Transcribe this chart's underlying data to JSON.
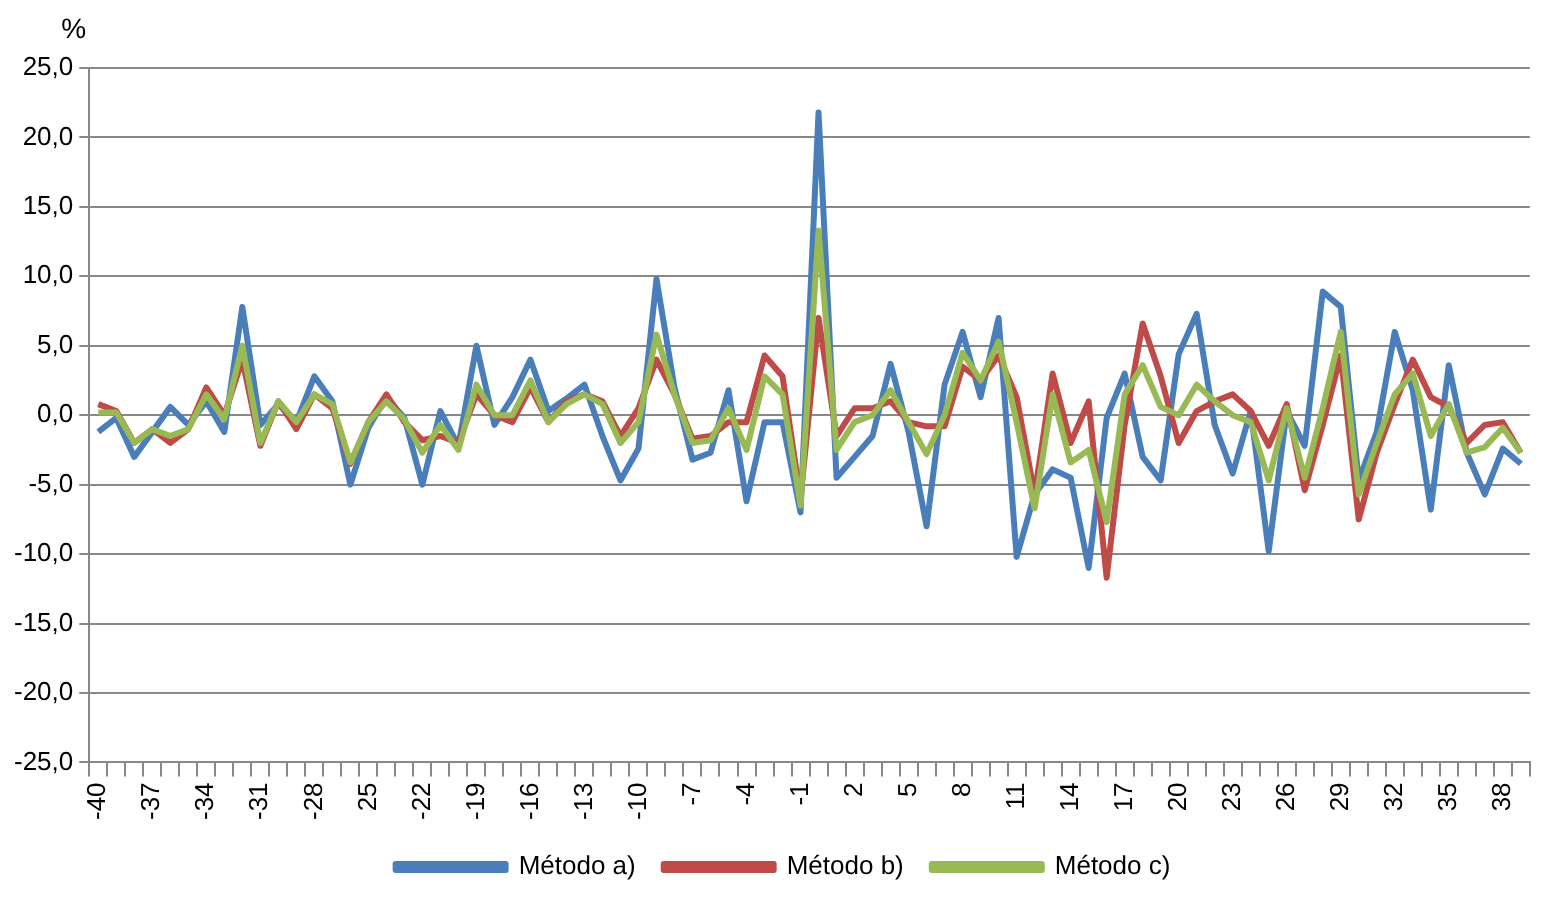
{
  "chart_data": {
    "type": "line",
    "ylabel": "%",
    "categories": [
      "-40",
      null,
      null,
      "-37",
      null,
      null,
      "-34",
      null,
      null,
      "-31",
      null,
      null,
      "-28",
      null,
      null,
      "25",
      null,
      null,
      "-22",
      null,
      null,
      "-19",
      null,
      null,
      "-16",
      null,
      null,
      "-13",
      null,
      null,
      "-10",
      null,
      null,
      "-7",
      null,
      null,
      "-4",
      null,
      null,
      "-1",
      null,
      null,
      "2",
      null,
      null,
      "5",
      null,
      null,
      "8",
      null,
      null,
      "11",
      null,
      null,
      "14",
      null,
      null,
      "17",
      null,
      null,
      "20",
      null,
      null,
      "23",
      null,
      null,
      "26",
      null,
      null,
      "29",
      null,
      null,
      "32",
      null,
      null,
      "35",
      null,
      null,
      "38",
      null
    ],
    "series": [
      {
        "name": "Método a)",
        "color": "#4a7ebb",
        "values": [
          -1.2,
          -0.2,
          -3.0,
          -1.2,
          0.6,
          -0.7,
          1.0,
          -1.2,
          7.8,
          -0.7,
          0.8,
          -0.5,
          2.8,
          1.0,
          -5.0,
          -0.9,
          1.3,
          -0.2,
          -5.0,
          0.3,
          -2.2,
          5.0,
          -0.7,
          1.3,
          4.0,
          0.3,
          1.2,
          2.2,
          -1.5,
          -4.7,
          -2.4,
          9.8,
          2.0,
          -3.2,
          -2.7,
          1.8,
          -6.2,
          -0.5,
          -0.5,
          -7.0,
          21.8,
          -4.5,
          -3.0,
          -1.5,
          3.7,
          -1.2,
          -8.0,
          2.2,
          6.0,
          1.3,
          7.0,
          -10.2,
          -5.7,
          -3.9,
          -4.5,
          -11.0,
          -0.2,
          3.0,
          -3.0,
          -4.7,
          4.4,
          7.3,
          -0.7,
          -4.2,
          0.3,
          -9.8,
          0.3,
          -2.2,
          8.9,
          7.8,
          -4.7,
          -1.2,
          6.0,
          1.8,
          -6.8,
          3.6,
          -2.7,
          -5.7,
          -2.4,
          -3.5
        ]
      },
      {
        "name": "Método b)",
        "color": "#be4b48",
        "values": [
          0.8,
          0.3,
          -2.0,
          -1.0,
          -2.0,
          -1.0,
          2.0,
          0.0,
          4.0,
          -2.2,
          1.0,
          -1.0,
          1.5,
          0.5,
          -3.5,
          -0.5,
          1.5,
          -0.5,
          -1.8,
          -1.5,
          -2.0,
          1.5,
          0.0,
          -0.5,
          2.0,
          -0.5,
          1.0,
          1.5,
          1.0,
          -1.5,
          0.5,
          4.0,
          1.5,
          -1.7,
          -1.5,
          -0.5,
          -0.5,
          4.3,
          2.8,
          -6.0,
          7.0,
          -1.5,
          0.5,
          0.5,
          1.0,
          -0.5,
          -0.8,
          -0.8,
          3.5,
          2.5,
          4.3,
          1.3,
          -5.7,
          3.0,
          -2.0,
          1.0,
          -11.7,
          -0.7,
          6.6,
          2.8,
          -2.0,
          0.3,
          1.0,
          1.5,
          0.3,
          -2.2,
          0.8,
          -5.4,
          -0.7,
          4.3,
          -7.5,
          -2.7,
          0.8,
          4.0,
          1.3,
          0.6,
          -2.0,
          -0.7,
          -0.5,
          -2.7
        ]
      },
      {
        "name": "Método c)",
        "color": "#98b954",
        "values": [
          0.2,
          0.2,
          -2.0,
          -1.0,
          -1.5,
          -1.0,
          1.5,
          -0.3,
          5.0,
          -2.0,
          1.0,
          -0.5,
          1.5,
          0.8,
          -3.4,
          -0.5,
          1.0,
          -0.3,
          -2.7,
          -0.7,
          -2.5,
          2.2,
          0.0,
          0.0,
          2.5,
          -0.5,
          0.8,
          1.5,
          0.8,
          -2.0,
          -0.5,
          5.8,
          1.5,
          -2.0,
          -1.8,
          0.5,
          -2.5,
          2.8,
          1.5,
          -6.5,
          13.3,
          -2.5,
          -0.5,
          0.0,
          1.8,
          -0.5,
          -2.8,
          0.0,
          4.5,
          2.5,
          5.3,
          -0.5,
          -6.7,
          1.5,
          -3.4,
          -2.5,
          -7.7,
          1.5,
          3.6,
          0.6,
          0.0,
          2.2,
          1.0,
          0.0,
          -0.5,
          -4.7,
          0.5,
          -4.5,
          0.5,
          6.0,
          -5.7,
          -2.0,
          1.5,
          3.0,
          -1.5,
          0.8,
          -2.7,
          -2.3,
          -0.9,
          -2.7
        ]
      }
    ],
    "ylim": [
      -25,
      25
    ],
    "yticks": [
      {
        "value": -25,
        "label": "-25,0"
      },
      {
        "value": -20,
        "label": "-20,0"
      },
      {
        "value": -15,
        "label": "-15,0"
      },
      {
        "value": -10,
        "label": "-10,0"
      },
      {
        "value": -5,
        "label": "-5,0"
      },
      {
        "value": 0,
        "label": "0,0"
      },
      {
        "value": 5,
        "label": "5,0"
      },
      {
        "value": 10,
        "label": "10,0"
      },
      {
        "value": 15,
        "label": "15,0"
      },
      {
        "value": 20,
        "label": "20,0"
      },
      {
        "value": 25,
        "label": "25,0"
      }
    ],
    "grid": "y",
    "legend": "bottom",
    "marker": "none",
    "line_style": "solid"
  }
}
